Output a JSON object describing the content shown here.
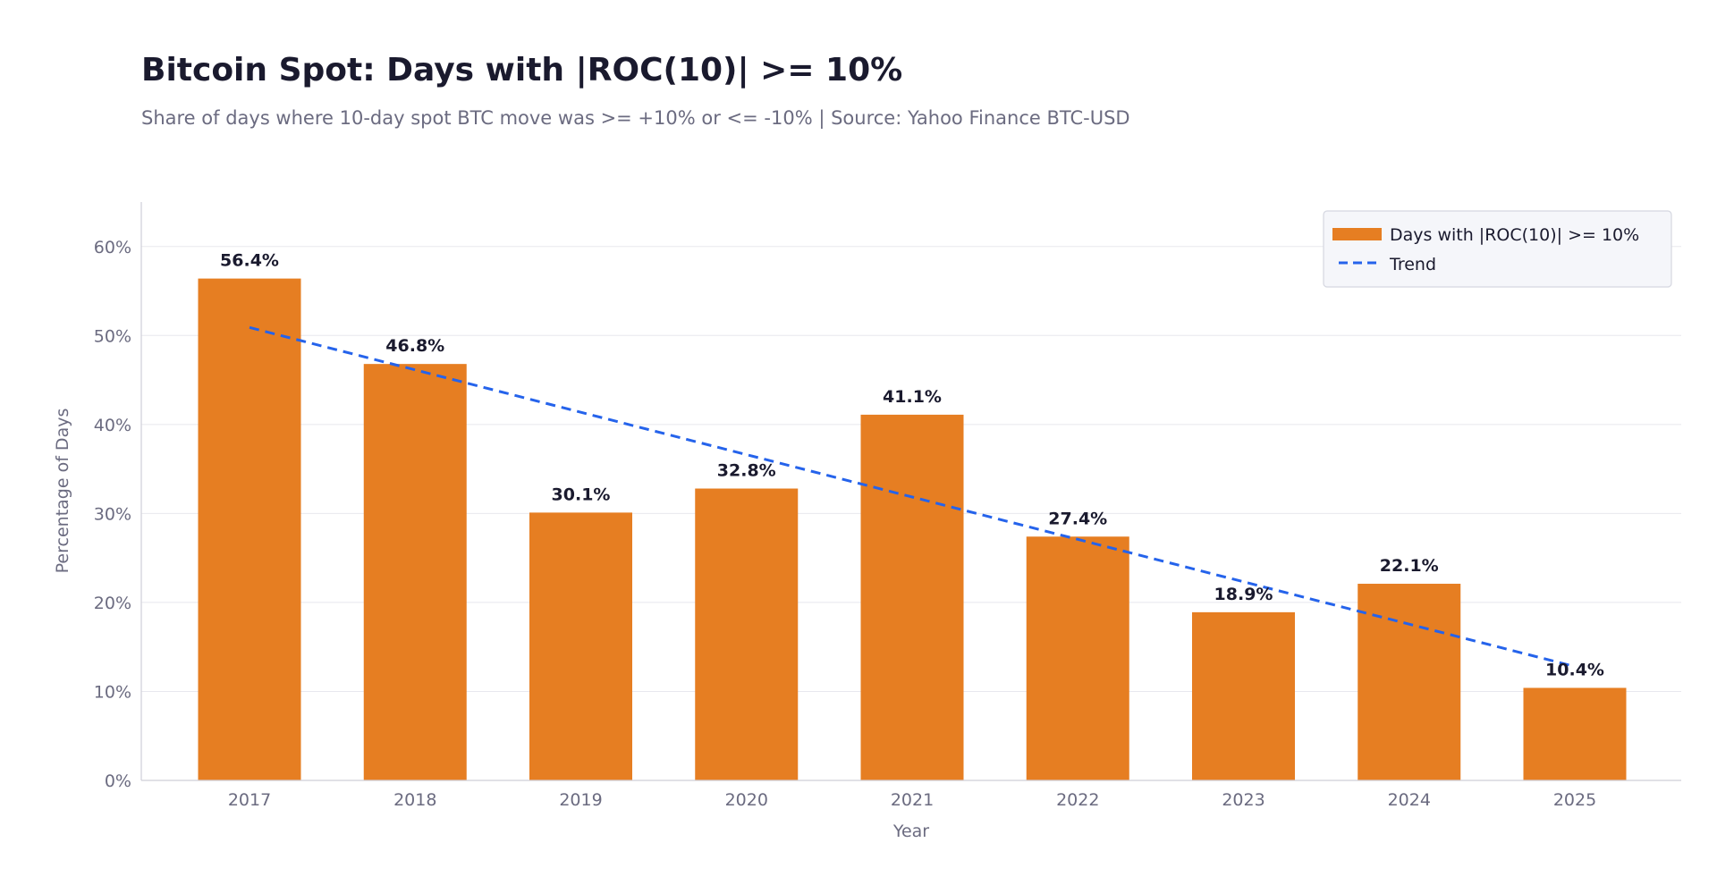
{
  "chart_data": {
    "type": "bar",
    "title": "Bitcoin Spot: Days with |ROC(10)| >= 10%",
    "subtitle": "Share of days where 10-day spot BTC move was >= +10% or <= -10% | Source: Yahoo Finance BTC-USD",
    "xlabel": "Year",
    "ylabel": "Percentage of Days",
    "categories": [
      "2017",
      "2018",
      "2019",
      "2020",
      "2021",
      "2022",
      "2023",
      "2024",
      "2025"
    ],
    "series": [
      {
        "name": "Days with |ROC(10)| >= 10%",
        "values": [
          56.4,
          46.8,
          30.1,
          32.8,
          41.1,
          27.4,
          18.9,
          22.1,
          10.4
        ],
        "labels": [
          "56.4%",
          "46.8%",
          "30.1%",
          "32.8%",
          "41.1%",
          "27.4%",
          "18.9%",
          "22.1%",
          "10.4%"
        ],
        "color": "#e67e22"
      },
      {
        "name": "Trend",
        "type": "line",
        "style": "dashed",
        "start_value": 50.9,
        "end_value": 12.8,
        "color": "#2563eb"
      }
    ],
    "ylim": [
      0,
      65
    ],
    "yticks": [
      0,
      10,
      20,
      30,
      40,
      50,
      60
    ],
    "ytick_labels": [
      "0%",
      "10%",
      "20%",
      "30%",
      "40%",
      "50%",
      "60%"
    ],
    "grid": "horizontal",
    "legend_position": "top-right"
  },
  "colors": {
    "bar": "#e67e22",
    "trend": "#2563eb",
    "grid": "#e8e8ee",
    "axis": "#cfcfd8",
    "legend_bg": "#f5f6fa",
    "legend_border": "#d5d7e0"
  }
}
